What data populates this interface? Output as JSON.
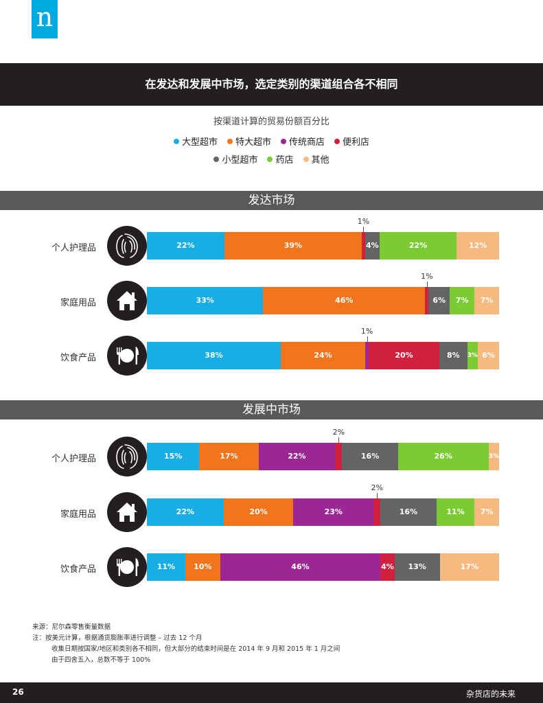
{
  "logo": "n",
  "header": {
    "title": "在发达和发展中市场，选定类别的渠道组合各不相同"
  },
  "subtitle": "按渠道计算的贸易份额百分比",
  "colors": {
    "大型超市": "#18aee5",
    "特大超市": "#f1751d",
    "传统商店": "#9b2794",
    "便利店": "#d11f3e",
    "小型超市": "#636466",
    "药店": "#7bcc33",
    "其他": "#f6b97e"
  },
  "legend": {
    "row1": [
      "大型超市",
      "特大超市",
      "传统商店",
      "便利店"
    ],
    "row2": [
      "小型超市",
      "药店",
      "其他"
    ]
  },
  "chart_data": {
    "type": "bar",
    "stacked": true,
    "orientation": "horizontal",
    "series_names": [
      "大型超市",
      "特大超市",
      "传统商店",
      "便利店",
      "小型超市",
      "药店",
      "其他"
    ],
    "panels": [
      {
        "title": "发达市场",
        "categories": [
          {
            "label": "个人护理品",
            "icon": "hair-icon",
            "values": [
              22,
              39,
              0,
              1,
              4,
              22,
              12
            ]
          },
          {
            "label": "家庭用品",
            "icon": "house-icon",
            "values": [
              33,
              46,
              0,
              1,
              6,
              7,
              7
            ]
          },
          {
            "label": "饮食产品",
            "icon": "utensils-icon",
            "values": [
              38,
              24,
              1,
              20,
              8,
              3,
              6
            ]
          }
        ]
      },
      {
        "title": "发展中市场",
        "categories": [
          {
            "label": "个人护理品",
            "icon": "hair-icon",
            "values": [
              15,
              17,
              22,
              2,
              16,
              26,
              3
            ]
          },
          {
            "label": "家庭用品",
            "icon": "house-icon",
            "values": [
              22,
              20,
              23,
              2,
              16,
              11,
              7
            ]
          },
          {
            "label": "饮食产品",
            "icon": "utensils-icon",
            "values": [
              11,
              10,
              46,
              4,
              13,
              0,
              17
            ]
          }
        ]
      }
    ]
  },
  "notes": {
    "source": "来源：尼尔森零售衡量数据",
    "note1": "注：按美元计算，根据通货膨胀率进行调整 – 过去 12 个月",
    "note2": "收集日期按国家/地区和类别各不相同，但大部分的结束时间是在 2014 年 9 月和 2015 年 1 月之间",
    "note3": "由于四舍五入，总数不等于 100%"
  },
  "footer": {
    "page_number": "26",
    "title": "杂货店的未来"
  }
}
